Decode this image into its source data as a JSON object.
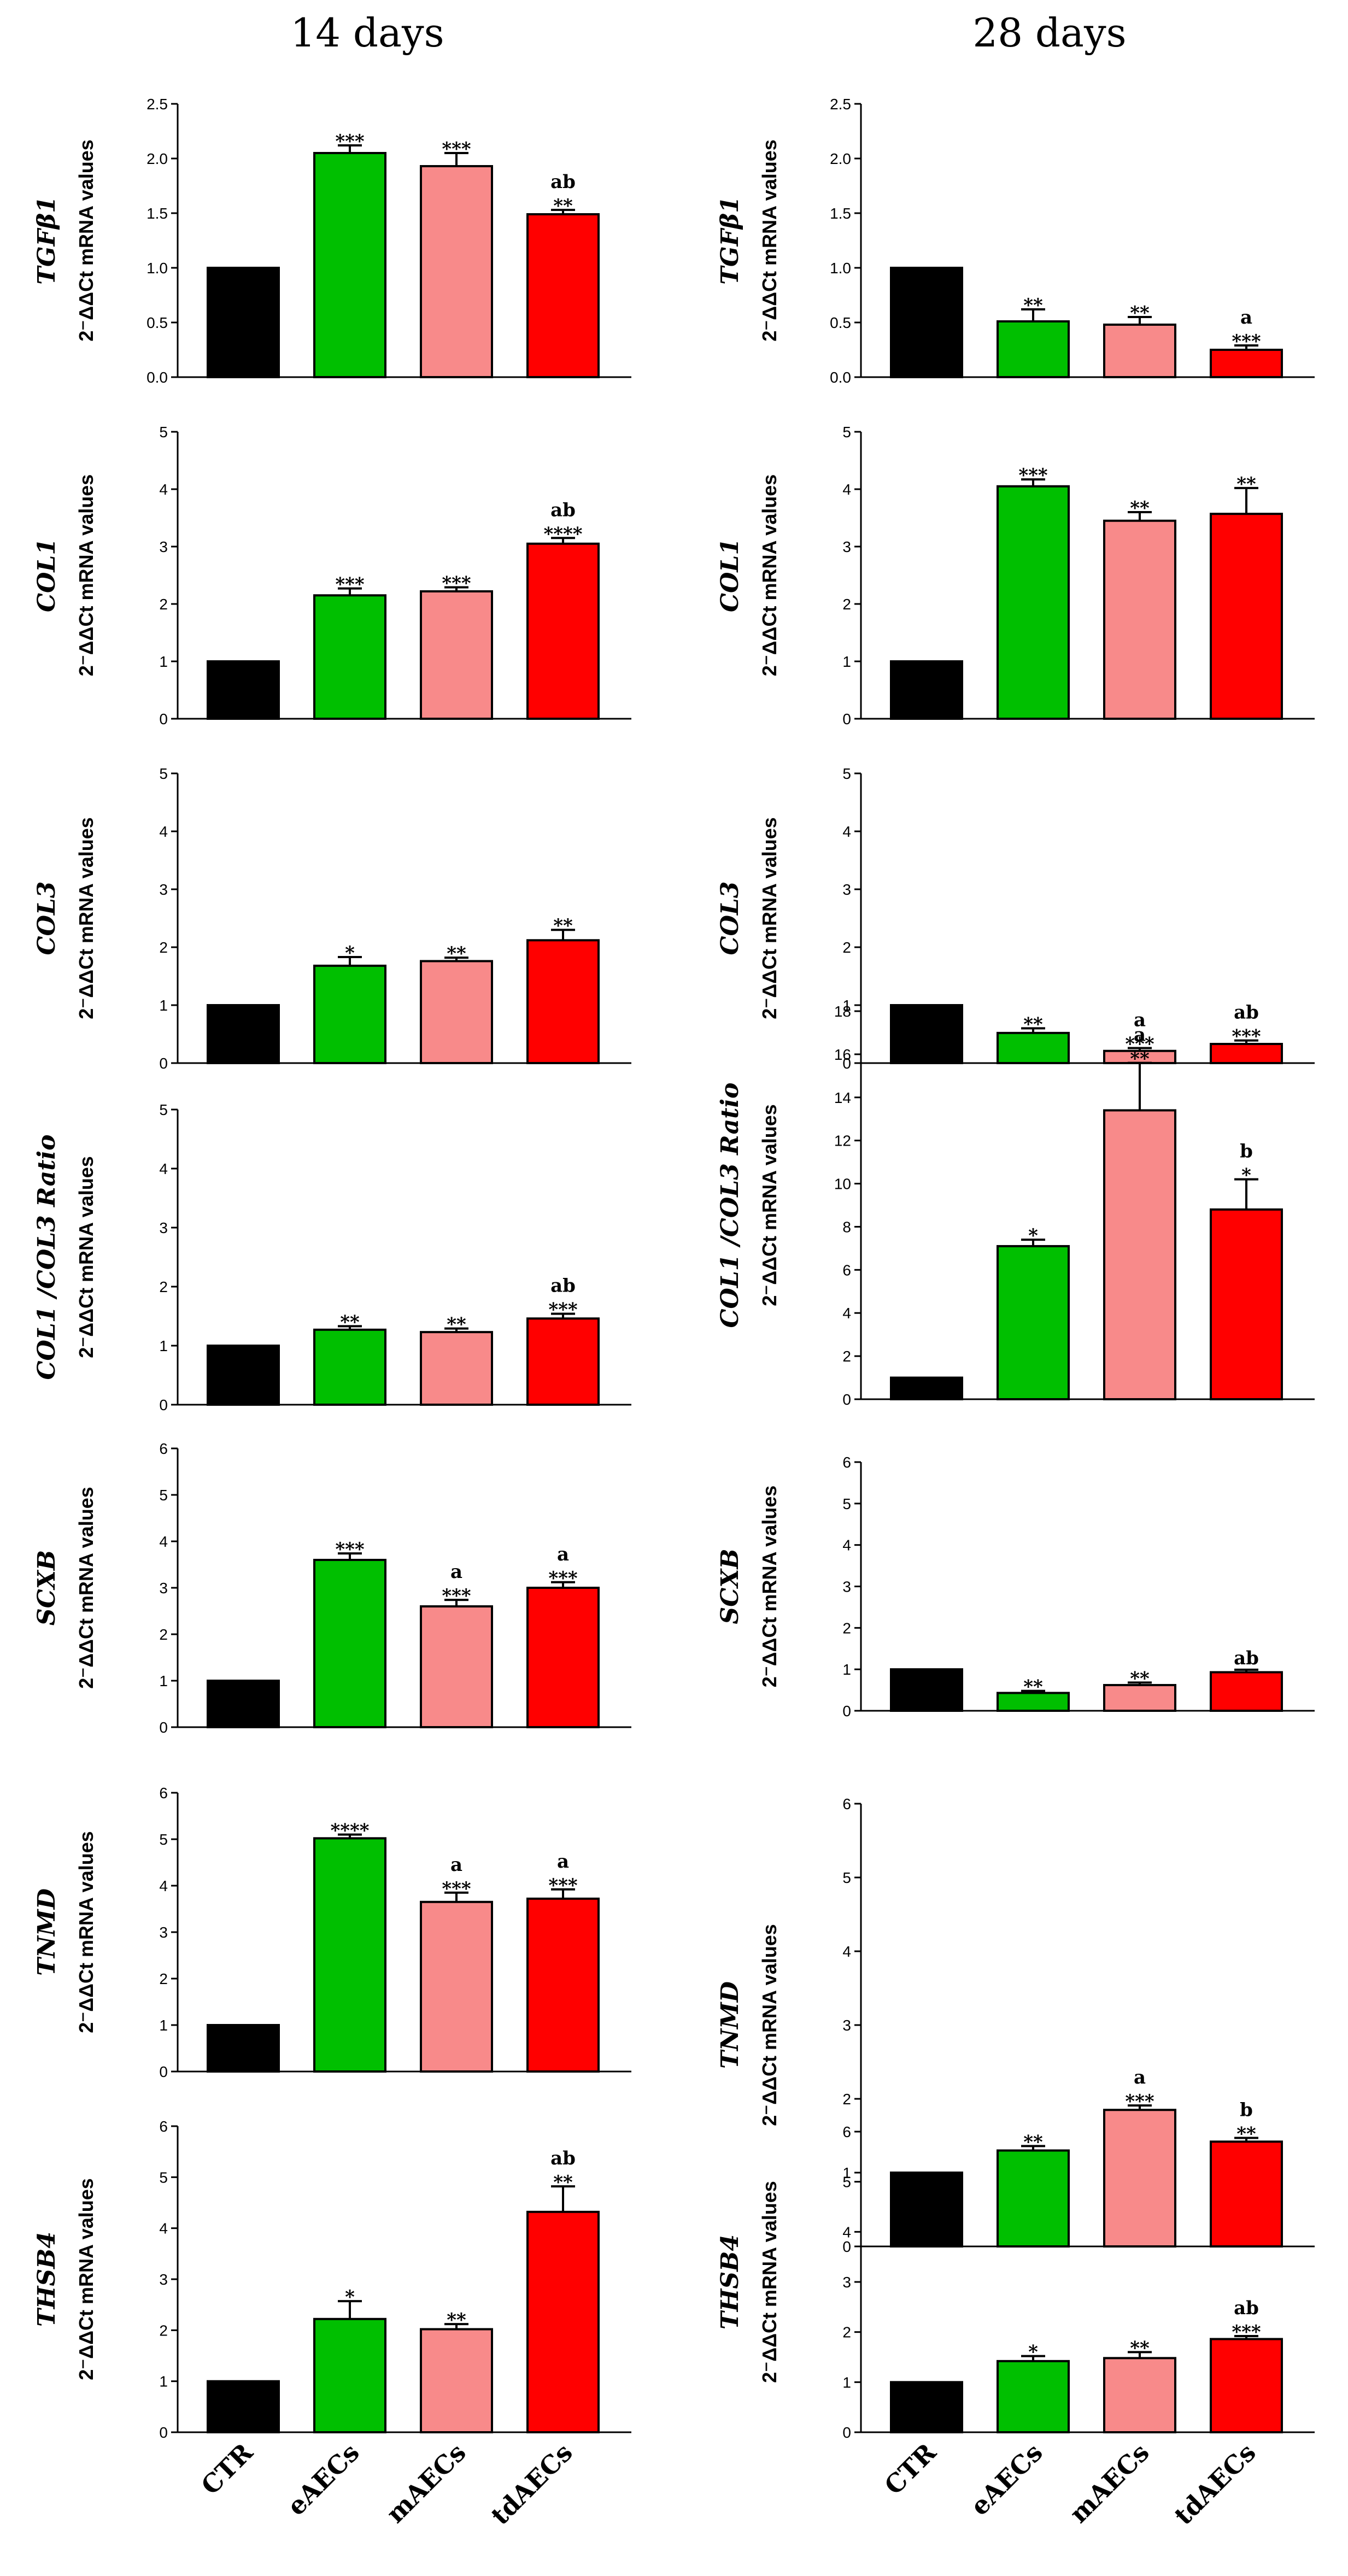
{
  "columns": [
    "14 days",
    "28 days"
  ],
  "categories": [
    "CTR",
    "eAECs",
    "mAECs",
    "tdAECs"
  ],
  "colors": {
    "CTR": "#000000",
    "eAECs": "#00bf00",
    "mAECs": "#f88a8a",
    "tdAECs": "#ff0000"
  },
  "ylabel_unit": "2⁻ΔΔCt  mRNA values",
  "chart_data": [
    {
      "type": "bar",
      "row": 0,
      "col": 0,
      "gene": "TGFβ1",
      "ylim": [
        0,
        2.5
      ],
      "ticks": [
        "0.0",
        "0.5",
        "1.0",
        "1.5",
        "2.0",
        "2.5"
      ],
      "values": [
        1.0,
        2.05,
        1.93,
        1.49
      ],
      "errors": [
        0,
        0.07,
        0.12,
        0.04
      ],
      "annotations": [
        [
          "",
          ""
        ],
        [
          "",
          "***"
        ],
        [
          "",
          "***"
        ],
        [
          "ab",
          "**"
        ]
      ]
    },
    {
      "type": "bar",
      "row": 0,
      "col": 1,
      "gene": "TGFβ1",
      "ylim": [
        0,
        2.5
      ],
      "ticks": [
        "0.0",
        "0.5",
        "1.0",
        "1.5",
        "2.0",
        "2.5"
      ],
      "values": [
        1.0,
        0.51,
        0.48,
        0.25
      ],
      "errors": [
        0,
        0.11,
        0.07,
        0.04
      ],
      "annotations": [
        [
          "",
          ""
        ],
        [
          "",
          "**"
        ],
        [
          "",
          "**"
        ],
        [
          "a",
          "***"
        ]
      ]
    },
    {
      "type": "bar",
      "row": 1,
      "col": 0,
      "gene": "COL1",
      "ylim": [
        0,
        5
      ],
      "ticks": [
        "0",
        "1",
        "2",
        "3",
        "4",
        "5"
      ],
      "values": [
        1.0,
        2.15,
        2.22,
        3.05
      ],
      "errors": [
        0,
        0.12,
        0.07,
        0.1
      ],
      "annotations": [
        [
          "",
          ""
        ],
        [
          "",
          "***"
        ],
        [
          "",
          "***"
        ],
        [
          "ab",
          "****"
        ]
      ]
    },
    {
      "type": "bar",
      "row": 1,
      "col": 1,
      "gene": "COL1",
      "ylim": [
        0,
        5
      ],
      "ticks": [
        "0",
        "1",
        "2",
        "3",
        "4",
        "5"
      ],
      "values": [
        1.0,
        4.05,
        3.45,
        3.57
      ],
      "errors": [
        0,
        0.12,
        0.15,
        0.45
      ],
      "annotations": [
        [
          "",
          ""
        ],
        [
          "",
          "***"
        ],
        [
          "",
          "**"
        ],
        [
          "",
          "**"
        ]
      ]
    },
    {
      "type": "bar",
      "row": 2,
      "col": 0,
      "gene": "COL3",
      "ylim": [
        0,
        5
      ],
      "ticks": [
        "0",
        "1",
        "2",
        "3",
        "4",
        "5"
      ],
      "values": [
        1.0,
        1.68,
        1.76,
        2.12
      ],
      "errors": [
        0,
        0.15,
        0.06,
        0.18
      ],
      "annotations": [
        [
          "",
          ""
        ],
        [
          "",
          "*"
        ],
        [
          "",
          "**"
        ],
        [
          "",
          "**"
        ]
      ]
    },
    {
      "type": "bar",
      "row": 2,
      "col": 1,
      "gene": "COL3",
      "ylim": [
        0,
        5
      ],
      "ticks": [
        "0",
        "1",
        "2",
        "3",
        "4",
        "5"
      ],
      "values": [
        1.0,
        0.52,
        0.21,
        0.33
      ],
      "errors": [
        0,
        0.08,
        0.05,
        0.06
      ],
      "annotations": [
        [
          "",
          ""
        ],
        [
          "",
          "**"
        ],
        [
          "a",
          "***"
        ],
        [
          "ab",
          "***"
        ]
      ]
    },
    {
      "type": "bar",
      "row": 3,
      "col": 0,
      "gene": "COL1 /COL3 Ratio",
      "ylim": [
        0,
        5
      ],
      "ticks": [
        "0",
        "1",
        "2",
        "3",
        "4",
        "5"
      ],
      "values": [
        1.0,
        1.27,
        1.23,
        1.46
      ],
      "errors": [
        0,
        0.06,
        0.06,
        0.08
      ],
      "annotations": [
        [
          "",
          ""
        ],
        [
          "",
          "**"
        ],
        [
          "",
          "**"
        ],
        [
          "ab",
          "***"
        ]
      ]
    },
    {
      "type": "bar",
      "row": 3,
      "col": 1,
      "gene": "COL1 /COL3 Ratio",
      "ylim": [
        0,
        18
      ],
      "ticks": [
        "0",
        "2",
        "4",
        "6",
        "8",
        "10",
        "12",
        "14",
        "16",
        "18"
      ],
      "values": [
        1.0,
        7.1,
        13.4,
        8.8
      ],
      "errors": [
        0,
        0.3,
        2.2,
        1.4
      ],
      "annotations": [
        [
          "",
          ""
        ],
        [
          "",
          "*"
        ],
        [
          "a",
          "**"
        ],
        [
          "b",
          "*"
        ]
      ]
    },
    {
      "type": "bar",
      "row": 4,
      "col": 0,
      "gene": "SCXB",
      "ylim": [
        0,
        6
      ],
      "ticks": [
        "0",
        "1",
        "2",
        "3",
        "4",
        "5",
        "6"
      ],
      "values": [
        1.0,
        3.6,
        2.6,
        3.0
      ],
      "errors": [
        0,
        0.14,
        0.14,
        0.12
      ],
      "annotations": [
        [
          "",
          ""
        ],
        [
          "",
          "***"
        ],
        [
          "a",
          "***"
        ],
        [
          "a",
          "***"
        ]
      ]
    },
    {
      "type": "bar",
      "row": 4,
      "col": 1,
      "gene": "SCXB",
      "ylim": [
        0,
        6
      ],
      "ticks": [
        "0",
        "1",
        "2",
        "3",
        "4",
        "5",
        "6"
      ],
      "values": [
        1.0,
        0.43,
        0.62,
        0.93
      ],
      "errors": [
        0,
        0.05,
        0.06,
        0.06
      ],
      "annotations": [
        [
          "",
          ""
        ],
        [
          "",
          "**"
        ],
        [
          "",
          "**"
        ],
        [
          "ab",
          ""
        ]
      ]
    },
    {
      "type": "bar",
      "row": 5,
      "col": 0,
      "gene": "TNMD",
      "ylim": [
        0,
        6
      ],
      "ticks": [
        "0",
        "1",
        "2",
        "3",
        "4",
        "5",
        "6"
      ],
      "values": [
        1.0,
        5.02,
        3.65,
        3.72
      ],
      "errors": [
        0,
        0.08,
        0.2,
        0.2
      ],
      "annotations": [
        [
          "",
          ""
        ],
        [
          "",
          "****"
        ],
        [
          "a",
          "***"
        ],
        [
          "a",
          "***"
        ]
      ]
    },
    {
      "type": "bar",
      "row": 5,
      "col": 1,
      "gene": "TNMD",
      "ylim": [
        0,
        6
      ],
      "ticks": [
        "0",
        "1",
        "2",
        "3",
        "4",
        "5",
        "6"
      ],
      "values": [
        1.0,
        1.3,
        1.85,
        1.42
      ],
      "errors": [
        0,
        0.06,
        0.06,
        0.05
      ],
      "annotations": [
        [
          "",
          ""
        ],
        [
          "",
          "**"
        ],
        [
          "a",
          "***"
        ],
        [
          "b",
          "**"
        ]
      ]
    },
    {
      "type": "bar",
      "row": 6,
      "col": 0,
      "gene": "THSB4",
      "ylim": [
        0,
        6
      ],
      "ticks": [
        "0",
        "1",
        "2",
        "3",
        "4",
        "5",
        "6"
      ],
      "values": [
        1.0,
        2.22,
        2.02,
        4.32
      ],
      "errors": [
        0,
        0.35,
        0.1,
        0.5
      ],
      "annotations": [
        [
          "",
          ""
        ],
        [
          "",
          "*"
        ],
        [
          "",
          "**"
        ],
        [
          "ab",
          "**"
        ]
      ]
    },
    {
      "type": "bar",
      "row": 6,
      "col": 1,
      "gene": "THSB4",
      "ylim": [
        0,
        6
      ],
      "ticks": [
        "0",
        "1",
        "2",
        "3",
        "4",
        "5",
        "6"
      ],
      "values": [
        1.0,
        1.42,
        1.48,
        1.86
      ],
      "errors": [
        0,
        0.1,
        0.12,
        0.06
      ],
      "annotations": [
        [
          "",
          ""
        ],
        [
          "",
          "*"
        ],
        [
          "",
          "**"
        ],
        [
          "ab",
          "***"
        ]
      ]
    }
  ]
}
